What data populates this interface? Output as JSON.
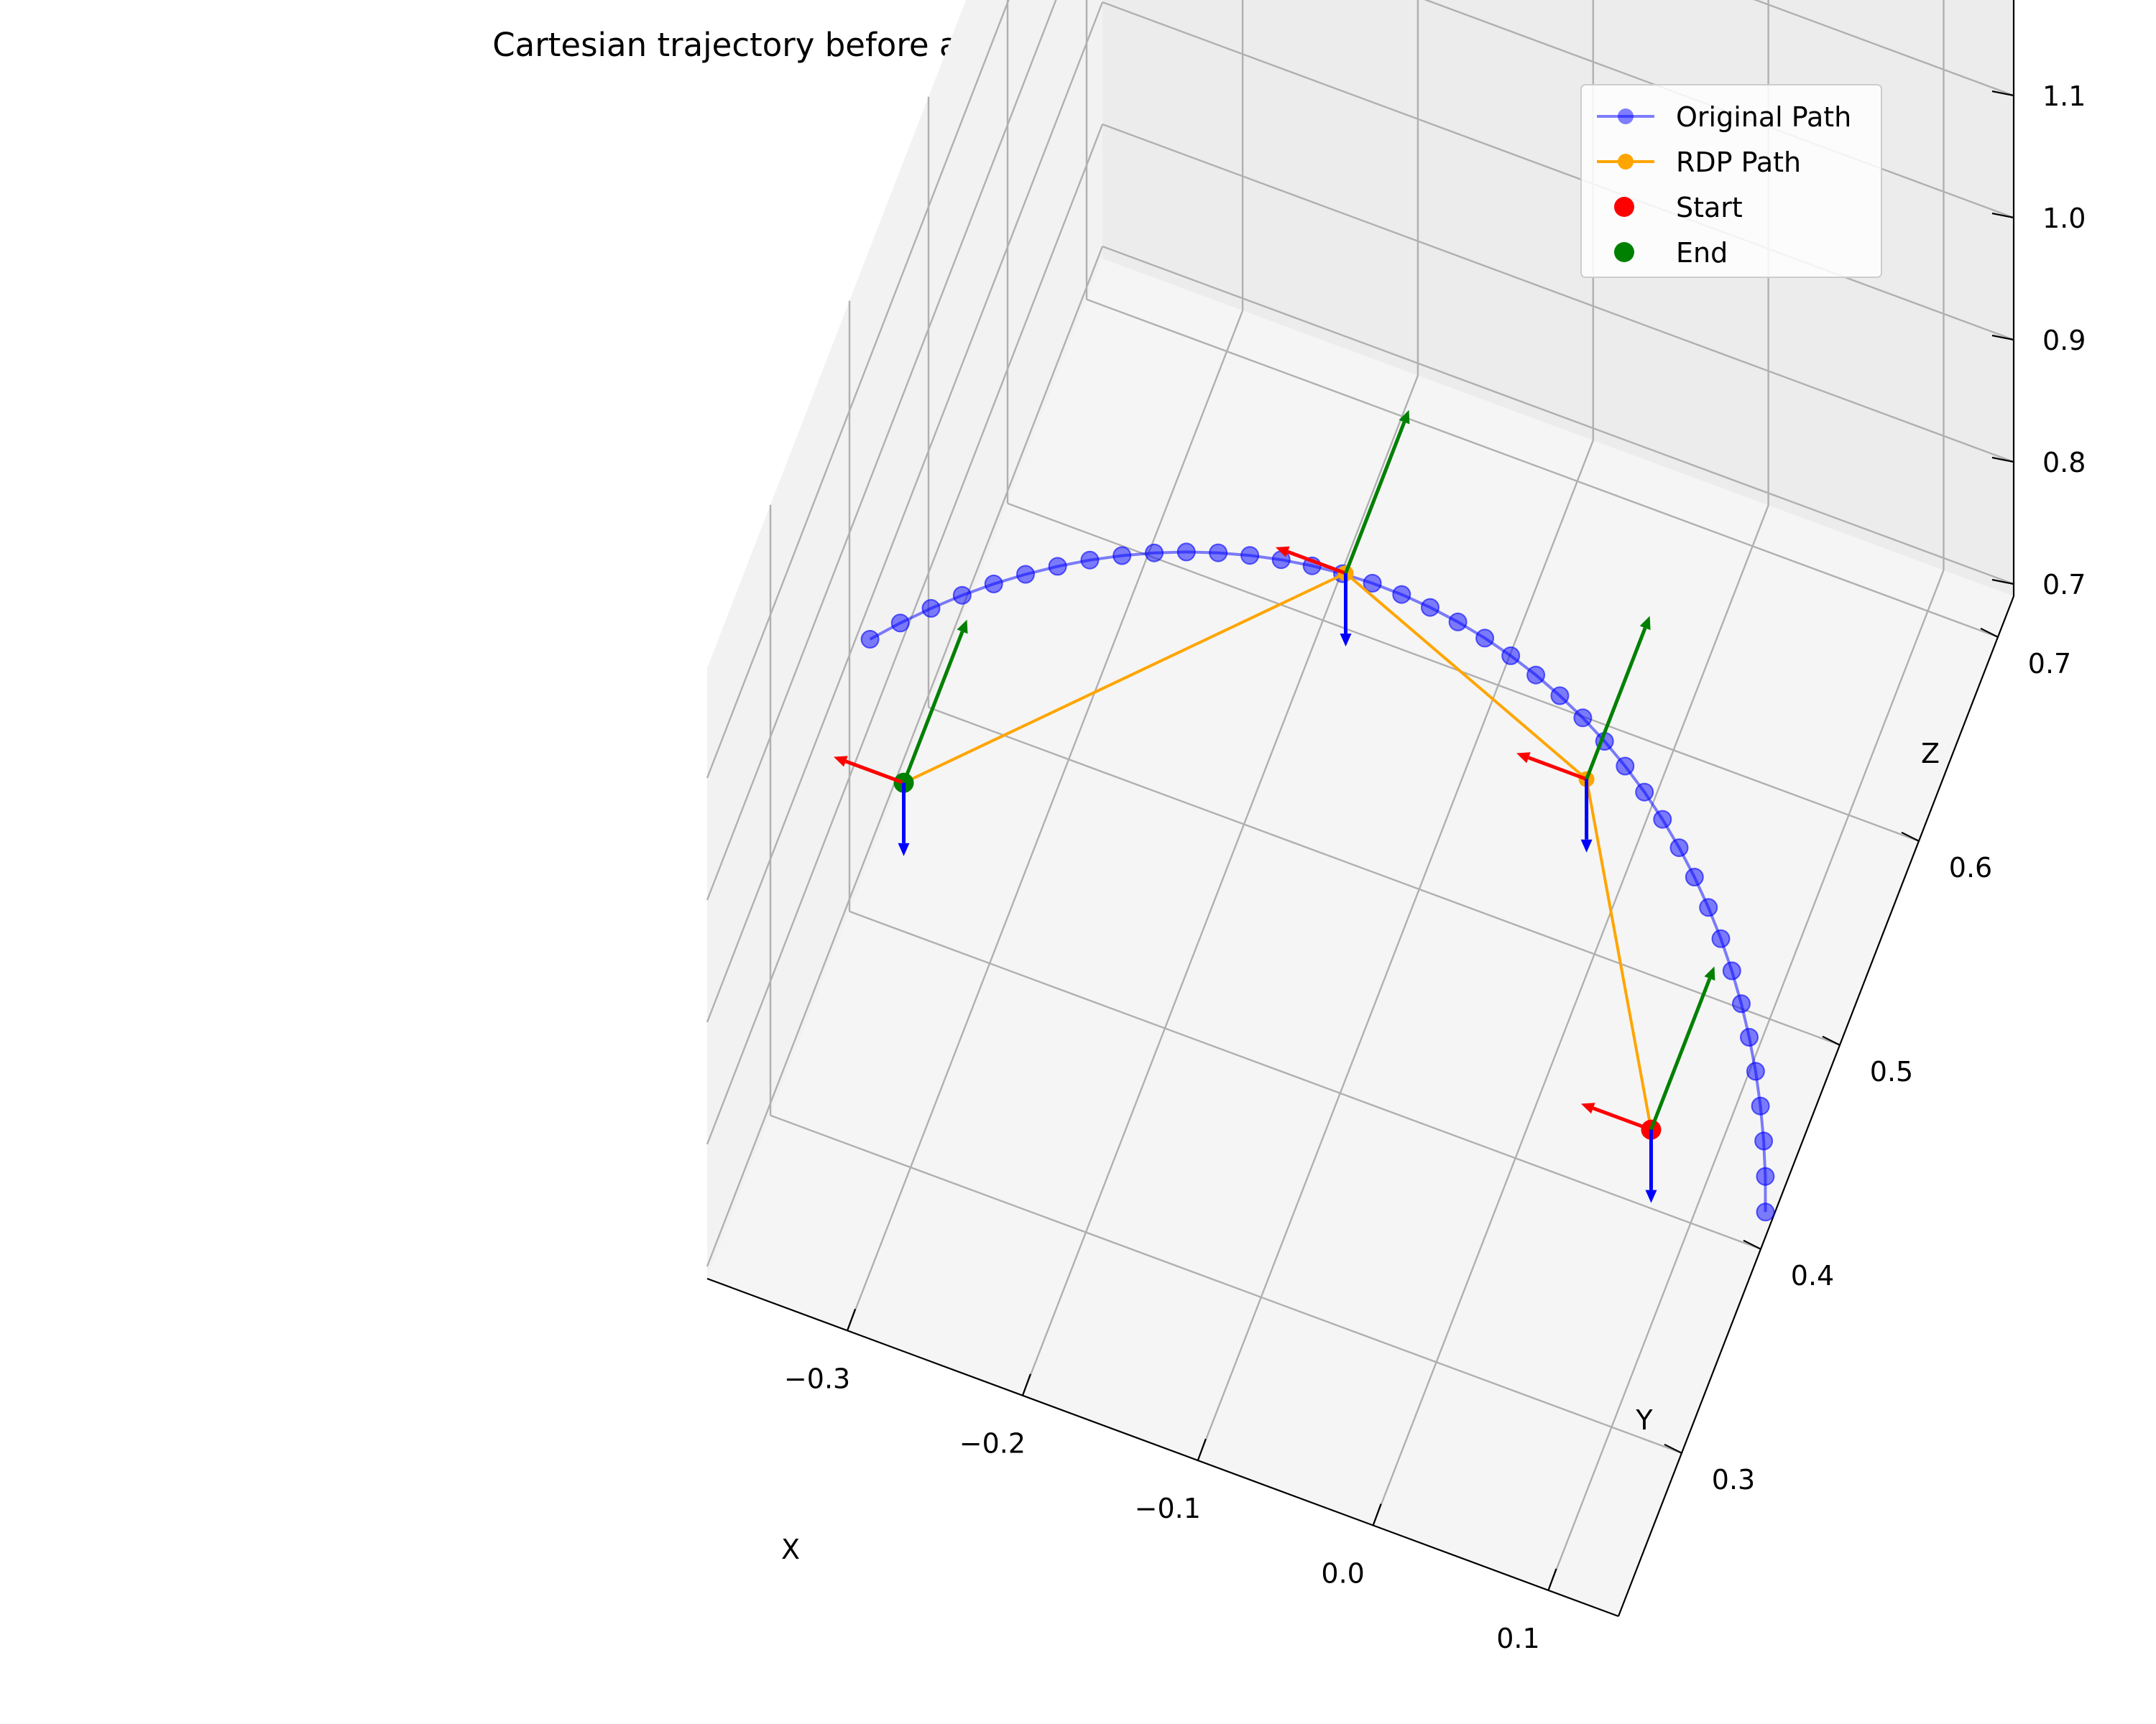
{
  "chart_data": {
    "type": "line3d",
    "title": "Cartesian trajectory before and after RDP simplification for LIN primitives",
    "xlabel": "X",
    "ylabel": "Y",
    "zlabel": "Z",
    "xlim": [
      -0.38,
      0.14
    ],
    "ylim": [
      0.22,
      0.72
    ],
    "zlim": [
      0.69,
      1.19
    ],
    "x_ticks": [
      -0.3,
      -0.2,
      -0.1,
      0.0,
      0.1
    ],
    "x_tick_labels": [
      "−0.3",
      "−0.2",
      "−0.1",
      "0.0",
      "0.1"
    ],
    "y_ticks": [
      0.3,
      0.4,
      0.5,
      0.6,
      0.7
    ],
    "y_tick_labels": [
      "0.3",
      "0.4",
      "0.5",
      "0.6",
      "0.7"
    ],
    "z_ticks": [
      0.7,
      0.8,
      0.9,
      1.0,
      1.1
    ],
    "z_tick_labels": [
      "0.7",
      "0.8",
      "0.9",
      "1.0",
      "1.1"
    ],
    "grid": true,
    "legend_position": "top-right",
    "series": [
      {
        "name": "Original Path",
        "color": "#0000ff",
        "marker": "circle",
        "alpha": 0.5,
        "arc": {
          "center_x": -0.14,
          "center_y": 0.2,
          "radius": 0.34,
          "z": 0.85,
          "angle_start_deg": 136,
          "angle_end_deg": 23,
          "points": 41
        }
      },
      {
        "name": "RDP Path",
        "color": "#ffa500",
        "marker": "circle",
        "x": [
          0.1,
          0.0,
          -0.16,
          -0.34
        ],
        "y": [
          0.35,
          0.49,
          0.54,
          0.38
        ],
        "z": [
          0.85,
          0.85,
          0.85,
          0.85
        ]
      },
      {
        "name": "Start",
        "color": "#ff0000",
        "marker": "circle",
        "x": [
          0.1
        ],
        "y": [
          0.35
        ],
        "z": [
          0.85
        ]
      },
      {
        "name": "End",
        "color": "#008000",
        "marker": "circle",
        "x": [
          -0.34
        ],
        "y": [
          0.38
        ],
        "z": [
          0.85
        ]
      }
    ],
    "frame_points": [
      {
        "x": 0.1,
        "y": 0.35,
        "z": 0.85
      },
      {
        "x": 0.0,
        "y": 0.49,
        "z": 0.85
      },
      {
        "x": -0.16,
        "y": 0.54,
        "z": 0.85
      },
      {
        "x": -0.34,
        "y": 0.38,
        "z": 0.85
      }
    ],
    "frame_axes": [
      {
        "color": "#ff0000",
        "dx": -0.04,
        "dy": 0,
        "dz": 0
      },
      {
        "color": "#008000",
        "dx": 0,
        "dy": 0.08,
        "dz": 0
      },
      {
        "color": "#0000ff",
        "dx": 0,
        "dy": 0,
        "dz": -0.06
      }
    ],
    "pane_colors": [
      "#f2f2f2",
      "#ececec",
      "#f5f5f5"
    ]
  }
}
